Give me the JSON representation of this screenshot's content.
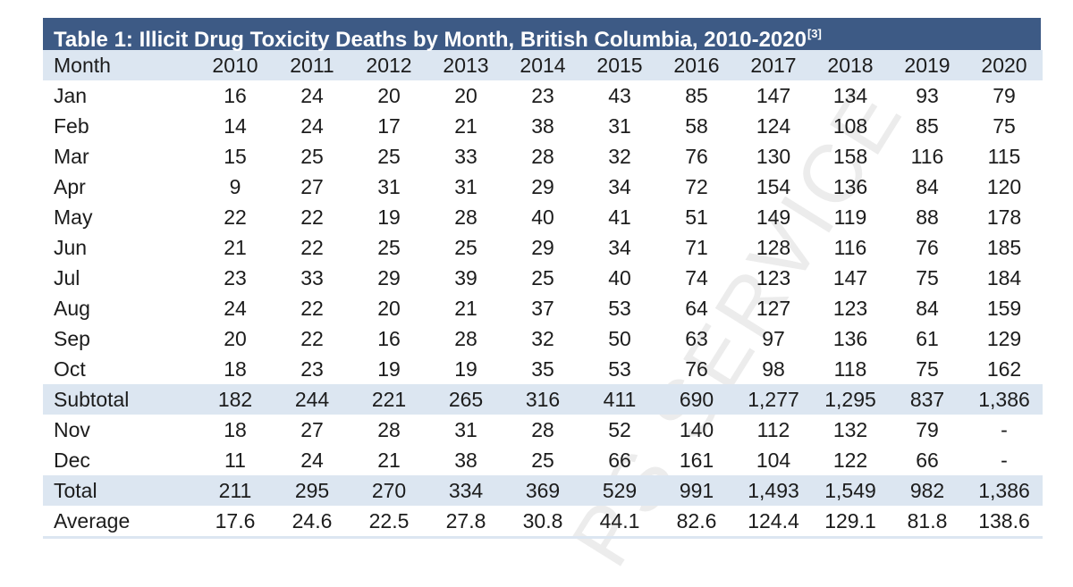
{
  "title": {
    "text": "Table 1: Illicit Drug Toxicity Deaths by Month, British Columbia, 2010-2020",
    "superscript": "[3]"
  },
  "columns": [
    "Month",
    "2010",
    "2011",
    "2012",
    "2013",
    "2014",
    "2015",
    "2016",
    "2017",
    "2018",
    "2019",
    "2020"
  ],
  "rows": [
    {
      "label": "Jan",
      "values": [
        "16",
        "24",
        "20",
        "20",
        "23",
        "43",
        "85",
        "147",
        "134",
        "93",
        "79"
      ],
      "shaded": false
    },
    {
      "label": "Feb",
      "values": [
        "14",
        "24",
        "17",
        "21",
        "38",
        "31",
        "58",
        "124",
        "108",
        "85",
        "75"
      ],
      "shaded": false
    },
    {
      "label": "Mar",
      "values": [
        "15",
        "25",
        "25",
        "33",
        "28",
        "32",
        "76",
        "130",
        "158",
        "116",
        "115"
      ],
      "shaded": false
    },
    {
      "label": "Apr",
      "values": [
        "9",
        "27",
        "31",
        "31",
        "29",
        "34",
        "72",
        "154",
        "136",
        "84",
        "120"
      ],
      "shaded": false
    },
    {
      "label": "May",
      "values": [
        "22",
        "22",
        "19",
        "28",
        "40",
        "41",
        "51",
        "149",
        "119",
        "88",
        "178"
      ],
      "shaded": false
    },
    {
      "label": "Jun",
      "values": [
        "21",
        "22",
        "25",
        "25",
        "29",
        "34",
        "71",
        "128",
        "116",
        "76",
        "185"
      ],
      "shaded": false
    },
    {
      "label": "Jul",
      "values": [
        "23",
        "33",
        "29",
        "39",
        "25",
        "40",
        "74",
        "123",
        "147",
        "75",
        "184"
      ],
      "shaded": false
    },
    {
      "label": "Aug",
      "values": [
        "24",
        "22",
        "20",
        "21",
        "37",
        "53",
        "64",
        "127",
        "123",
        "84",
        "159"
      ],
      "shaded": false
    },
    {
      "label": "Sep",
      "values": [
        "20",
        "22",
        "16",
        "28",
        "32",
        "50",
        "63",
        "97",
        "136",
        "61",
        "129"
      ],
      "shaded": false
    },
    {
      "label": "Oct",
      "values": [
        "18",
        "23",
        "19",
        "19",
        "35",
        "53",
        "76",
        "98",
        "118",
        "75",
        "162"
      ],
      "shaded": false
    },
    {
      "label": "Subtotal",
      "values": [
        "182",
        "244",
        "221",
        "265",
        "316",
        "411",
        "690",
        "1,277",
        "1,295",
        "837",
        "1,386"
      ],
      "shaded": true
    },
    {
      "label": "Nov",
      "values": [
        "18",
        "27",
        "28",
        "31",
        "28",
        "52",
        "140",
        "112",
        "132",
        "79",
        "-"
      ],
      "shaded": false
    },
    {
      "label": "Dec",
      "values": [
        "11",
        "24",
        "21",
        "38",
        "25",
        "66",
        "161",
        "104",
        "122",
        "66",
        "-"
      ],
      "shaded": false
    },
    {
      "label": "Total",
      "values": [
        "211",
        "295",
        "270",
        "334",
        "369",
        "529",
        "991",
        "1,493",
        "1,549",
        "982",
        "1,386"
      ],
      "shaded": true
    },
    {
      "label": "Average",
      "values": [
        "17.6",
        "24.6",
        "22.5",
        "27.8",
        "30.8",
        "44.1",
        "82.6",
        "124.4",
        "129.1",
        "81.8",
        "138.6"
      ],
      "shaded": false
    }
  ],
  "watermark": {
    "text": "PS SERVICE",
    "color": "#ececec"
  },
  "colors": {
    "title_bg": "#3d5a85",
    "shade": "#dce6f1",
    "text": "#1c1c1c"
  }
}
